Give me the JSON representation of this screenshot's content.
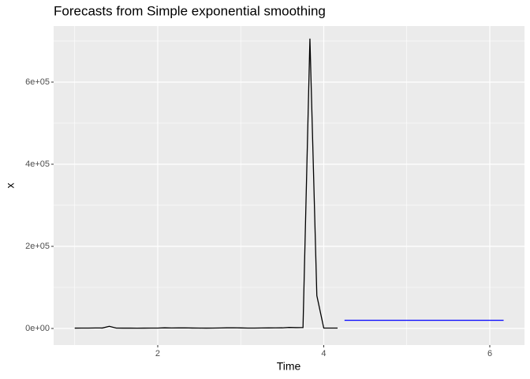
{
  "chart_data": {
    "type": "line",
    "title": "Forecasts from Simple exponential smoothing",
    "x_label": "Time",
    "y_label": "x",
    "xlim": [
      0.746,
      6.418
    ],
    "ylim": [
      -40400,
      736500
    ],
    "xticks": [
      2,
      4,
      6
    ],
    "yticks": [
      {
        "value": 0,
        "label": "0e+00"
      },
      {
        "value": 200000,
        "label": "2e+05"
      },
      {
        "value": 400000,
        "label": "4e+05"
      },
      {
        "value": 600000,
        "label": "6e+05"
      }
    ],
    "grid": true,
    "series": [
      {
        "color": "#000000",
        "x": [
          1,
          1.0833,
          1.1667,
          1.25,
          1.3333,
          1.4167,
          1.5,
          1.5833,
          1.6667,
          1.75,
          1.8333,
          1.9167,
          2,
          2.0833,
          2.1667,
          2.25,
          2.3333,
          2.4167,
          2.5,
          2.5833,
          2.6667,
          2.75,
          2.8333,
          2.9167,
          3,
          3.0833,
          3.1667,
          3.25,
          3.3333,
          3.4167,
          3.5,
          3.5833,
          3.6667,
          3.75,
          3.8333,
          3.9167,
          4,
          4.0833,
          4.1667
        ],
        "values": [
          800,
          900,
          1000,
          1200,
          1100,
          5200,
          900,
          800,
          800,
          700,
          800,
          900,
          1000,
          1500,
          1200,
          1300,
          1400,
          1100,
          900,
          800,
          900,
          1200,
          1500,
          1600,
          1300,
          900,
          1000,
          1200,
          1300,
          1400,
          1500,
          2500,
          2000,
          2200,
          706000,
          80000,
          1000,
          900,
          1000
        ]
      },
      {
        "color": "#0000ff",
        "x": [
          4.25,
          4.3333,
          4.4167,
          4.5,
          4.5833,
          4.6667,
          4.75,
          4.8333,
          4.9167,
          5,
          5.0833,
          5.1667,
          5.25,
          5.3333,
          5.4167,
          5.5,
          5.5833,
          5.6667,
          5.75,
          5.8333,
          5.9167,
          6,
          6.0833,
          6.1667
        ],
        "values": [
          20000,
          20000,
          20000,
          20000,
          20000,
          20000,
          20000,
          20000,
          20000,
          20000,
          20000,
          20000,
          20000,
          20000,
          20000,
          20000,
          20000,
          20000,
          20000,
          20000,
          20000,
          20000,
          20000,
          20000
        ]
      }
    ]
  }
}
